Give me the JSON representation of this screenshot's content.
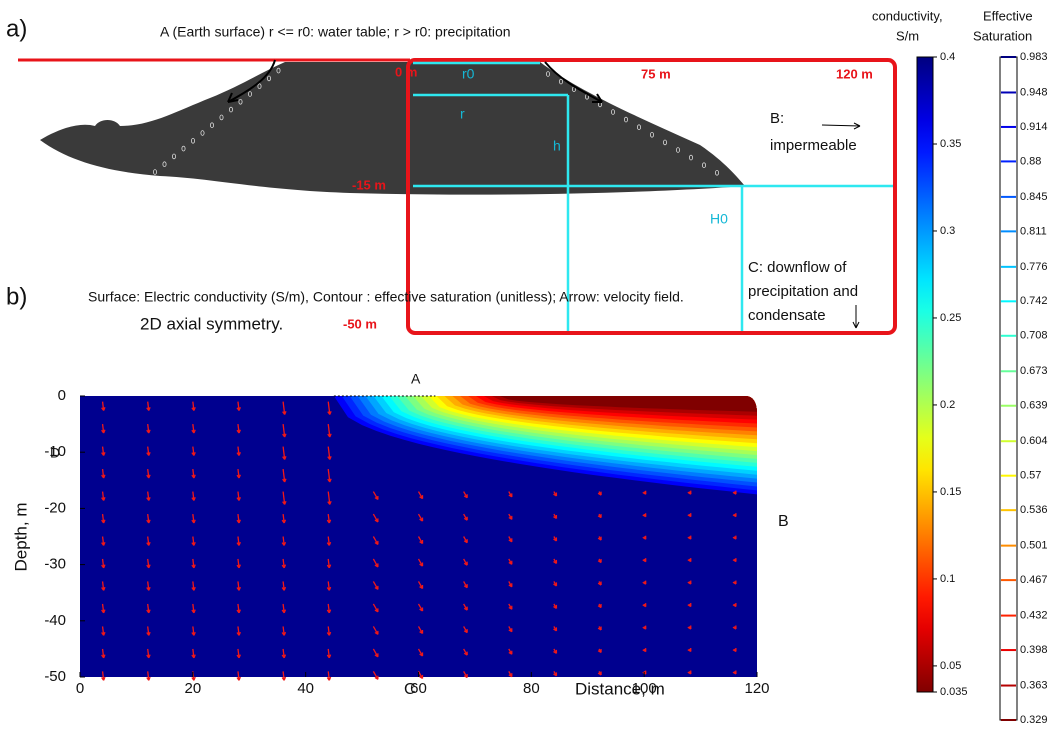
{
  "panel_a": {
    "label": "a)",
    "title": "A (Earth surface)  r <=  r0: water table;  r > r0: precipitation",
    "depth_labels": [
      "0 m",
      "75 m",
      "120 m",
      "-15 m",
      "-50 m"
    ],
    "geometry_labels": [
      "r0",
      "r",
      "h",
      "H0"
    ],
    "boundary_b": [
      "B:",
      "impermeable"
    ],
    "boundary_c": [
      "C: downflow of",
      "precipitation and",
      "condensate"
    ]
  },
  "panel_b": {
    "label": "b)",
    "title": "Surface: Electric conductivity (S/m),  Contour : effective saturation (unitless);  Arrow: velocity field.",
    "subtitle": "2D axial symmetry.",
    "xlabel": "Distance, m",
    "ylabel": "Depth, m",
    "xlim": [
      0,
      120
    ],
    "xticks": [
      0,
      20,
      40,
      60,
      80,
      100,
      120
    ],
    "ylim": [
      -50,
      0
    ],
    "yticks": [
      0,
      -10,
      -20,
      -30,
      -40,
      -50
    ],
    "markers": [
      "A",
      "B",
      "C",
      "D"
    ]
  },
  "colorbar_conductivity": {
    "title": [
      "conductivity,",
      "S/m"
    ],
    "colormap": "jet",
    "lim": [
      0.035,
      0.4
    ],
    "ticks": [
      0.4,
      0.35,
      0.3,
      0.25,
      0.2,
      0.15,
      0.1,
      0.05,
      0.035
    ]
  },
  "colorbar_saturation": {
    "title": [
      "Effective",
      "Saturation"
    ],
    "colormap": "jet",
    "lim": [
      0.329,
      0.983
    ],
    "levels": [
      0.983,
      0.948,
      0.914,
      0.88,
      0.845,
      0.811,
      0.776,
      0.742,
      0.708,
      0.673,
      0.639,
      0.604,
      0.57,
      0.536,
      0.501,
      0.467,
      0.432,
      0.398,
      0.363,
      0.329
    ]
  }
}
